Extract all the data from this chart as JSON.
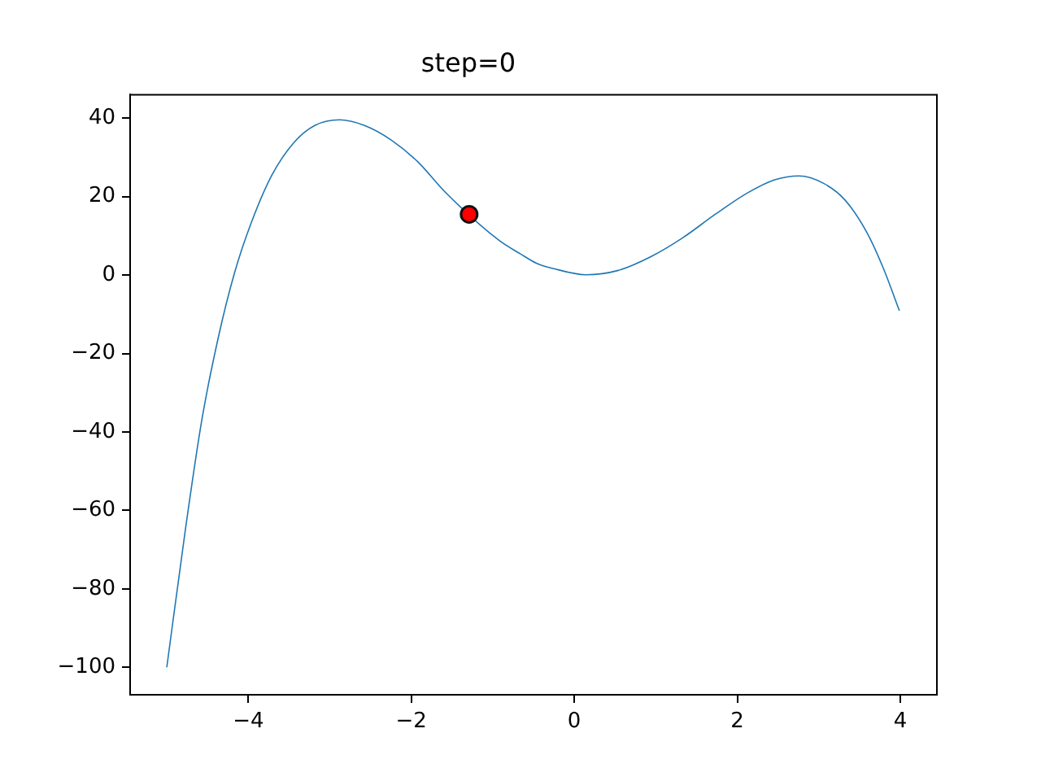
{
  "chart_data": {
    "type": "line",
    "title": "step=0",
    "xlim": [
      -5.45,
      4.45
    ],
    "ylim": [
      -107,
      46
    ],
    "xticks": [
      -4,
      -2,
      0,
      2,
      4
    ],
    "yticks": [
      -100,
      -80,
      -60,
      -40,
      -20,
      0,
      20,
      40
    ],
    "grid": false,
    "legend": false,
    "series": [
      {
        "color": "#1f77b4",
        "marker": "none",
        "x": [
          -5,
          -4.77,
          -4.57,
          -4.37,
          -4.17,
          -3.97,
          -3.71,
          -3.44,
          -3.18,
          -2.88,
          -2.58,
          -2.25,
          -1.92,
          -1.59,
          -0.92,
          -0.66,
          -0.46,
          -0.26,
          0.14,
          0.54,
          0.94,
          1.33,
          1.73,
          2.13,
          2.46,
          2.76,
          3.06,
          3.32,
          3.59,
          3.79,
          3.99
        ],
        "values": [
          -100,
          -64.6,
          -36.9,
          -16.1,
          0.5,
          13,
          25.5,
          33.8,
          38.2,
          39.6,
          38.2,
          34.5,
          28.9,
          21.3,
          8.8,
          5.4,
          3,
          1.7,
          0.1,
          1.2,
          4.7,
          9.5,
          15.5,
          21,
          24.3,
          25.3,
          23.4,
          19.2,
          10.9,
          1.9,
          -9.1
        ]
      },
      {
        "type": "scatter",
        "color": "#ff0000",
        "marker": "circle",
        "x": [
          -1.29
        ],
        "values": [
          15.5
        ]
      }
    ]
  }
}
